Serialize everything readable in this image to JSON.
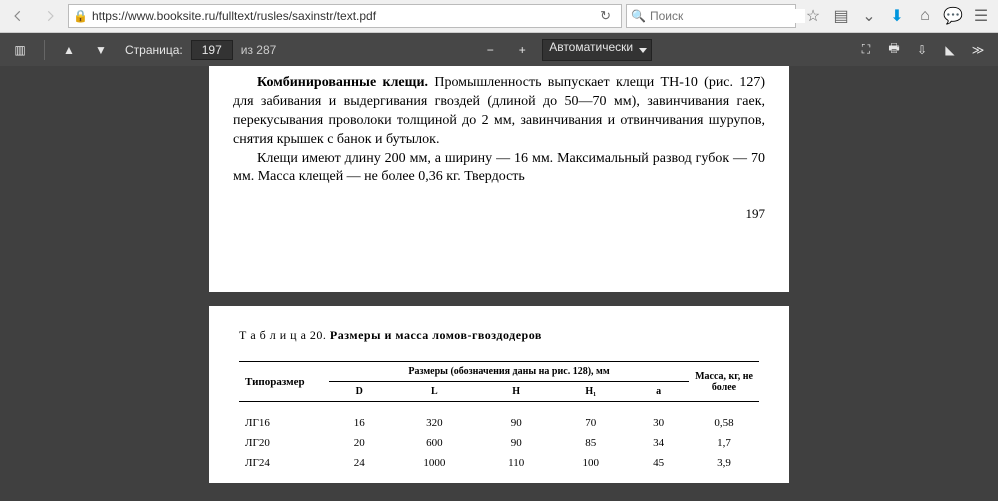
{
  "browser": {
    "url": "https://www.booksite.ru/fulltext/rusles/saxinstr/text.pdf",
    "search_placeholder": "Поиск"
  },
  "pdf_toolbar": {
    "page_label": "Страница:",
    "page_current": "197",
    "page_total": "из 287",
    "zoom_label": "Автоматически"
  },
  "page1": {
    "paragraph1_bold": "Комбинированные клещи.",
    "paragraph1_rest": " Промышленность выпускает клещи ТН-10 (рис. 127) для забивания и выдергивания гвоздей (длиной до 50—70 мм), завинчивания гаек, перекусывания проволоки толщиной до 2 мм, завинчивания и отвинчивания шурупов, снятия крышек с банок и бутылок.",
    "paragraph2": "Клещи имеют длину 200 мм, а ширину — 16 мм. Максимальный развод губок — 70 мм. Масса клещей — не более 0,36 кг. Твердость",
    "page_number": "197"
  },
  "page2": {
    "table_label": "Т а б л и ц а   20.",
    "table_title": "Размеры и масса ломов-гвоздодеров",
    "col_type": "Типоразмер",
    "col_dims": "Размеры (обозначения даны на рис. 128), мм",
    "col_mass": "Масса, кг, не более",
    "subcols": [
      "D",
      "L",
      "H",
      "H₁",
      "a"
    ],
    "rows": [
      {
        "type": "ЛГ16",
        "d": "16",
        "l": "320",
        "h": "90",
        "h1": "70",
        "a": "30",
        "mass": "0,58"
      },
      {
        "type": "ЛГ20",
        "d": "20",
        "l": "600",
        "h": "90",
        "h1": "85",
        "a": "34",
        "mass": "1,7"
      },
      {
        "type": "ЛГ24",
        "d": "24",
        "l": "1000",
        "h": "110",
        "h1": "100",
        "a": "45",
        "mass": "3,9"
      }
    ]
  }
}
